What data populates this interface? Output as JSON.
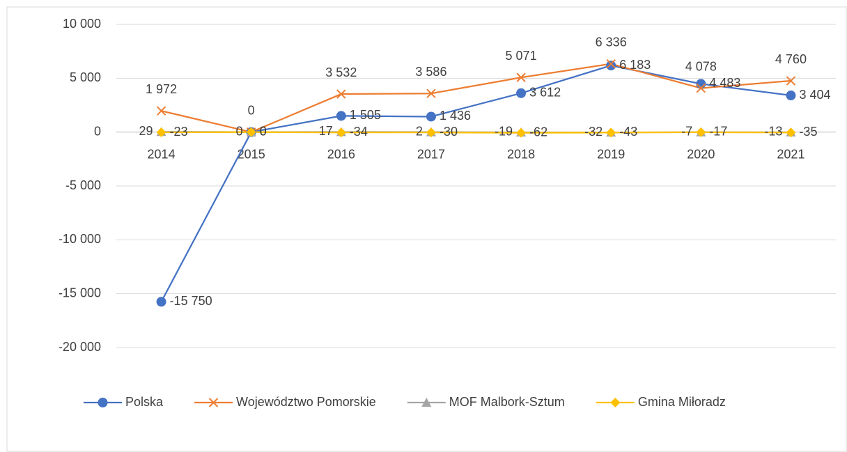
{
  "chart_data": {
    "type": "line",
    "categories": [
      "2014",
      "2015",
      "2016",
      "2017",
      "2018",
      "2019",
      "2020",
      "2021"
    ],
    "series": [
      {
        "name": "Polska",
        "color": "#4472c4",
        "marker": "circle",
        "label_position": "right",
        "values": [
          -15750,
          0,
          1505,
          1436,
          3612,
          6183,
          4483,
          3404
        ],
        "value_labels": [
          "-15 750",
          "0",
          "1 505",
          "1 436",
          "3 612",
          "6 183",
          "4 483",
          "3 404"
        ]
      },
      {
        "name": "Województwo Pomorskie",
        "color": "#ed7d31",
        "marker": "x",
        "label_position": "above",
        "values": [
          1972,
          0,
          3532,
          3586,
          5071,
          6336,
          4078,
          4760
        ],
        "value_labels": [
          "1 972",
          "0",
          "3 532",
          "3 586",
          "5 071",
          "6 336",
          "4 078",
          "4 760"
        ]
      },
      {
        "name": "MOF Malbork-Sztum",
        "color": "#a5a5a5",
        "marker": "triangle",
        "label_position": "left",
        "values": [
          29,
          0,
          17,
          2,
          -19,
          -32,
          -7,
          -13
        ]
      },
      {
        "name": "Gmina Miłoradz",
        "color": "#ffc000",
        "marker": "diamond",
        "label_position": "right",
        "values": [
          -23,
          0,
          -34,
          -30,
          -62,
          -43,
          -17,
          -35
        ]
      }
    ],
    "ylim": [
      -20000,
      10000
    ],
    "yticks": [
      {
        "value": -20000,
        "label": "-20 000"
      },
      {
        "value": -15000,
        "label": "-15 000"
      },
      {
        "value": -10000,
        "label": "-10 000"
      },
      {
        "value": -5000,
        "label": "-5 000"
      },
      0,
      {
        "value": 5000,
        "label": "5 000"
      },
      {
        "value": 10000,
        "label": "10 000"
      }
    ],
    "grid": true,
    "legend": "bottom"
  }
}
